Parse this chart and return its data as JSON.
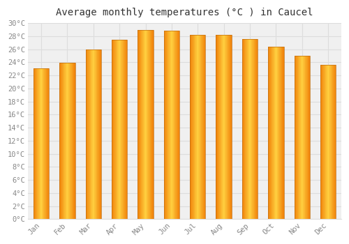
{
  "title": "Average monthly temperatures (°C ) in Caucel",
  "months": [
    "Jan",
    "Feb",
    "Mar",
    "Apr",
    "May",
    "Jun",
    "Jul",
    "Aug",
    "Sep",
    "Oct",
    "Nov",
    "Dec"
  ],
  "values": [
    23.1,
    23.9,
    26.0,
    27.5,
    29.0,
    28.9,
    28.2,
    28.2,
    27.6,
    26.4,
    25.0,
    23.6
  ],
  "ylim": [
    0,
    30
  ],
  "ytick_step": 2,
  "background_color": "#FFFFFF",
  "plot_bg_color": "#F0F0F0",
  "grid_color": "#DDDDDD",
  "bar_color_center": "#FFD040",
  "bar_color_edge": "#F0820A",
  "bar_edge_color": "#C07010",
  "title_fontsize": 10,
  "tick_fontsize": 7.5,
  "tick_color": "#888888",
  "bar_width": 0.6
}
